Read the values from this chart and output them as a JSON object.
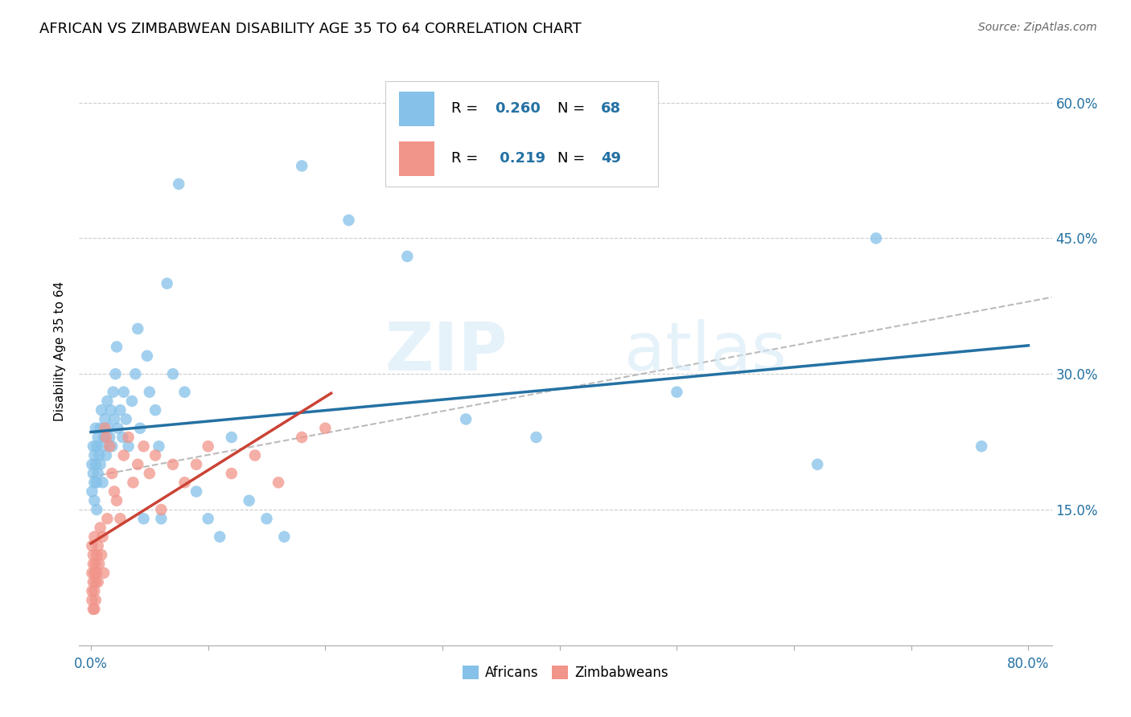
{
  "title": "AFRICAN VS ZIMBABWEAN DISABILITY AGE 35 TO 64 CORRELATION CHART",
  "source": "Source: ZipAtlas.com",
  "ylabel": "Disability Age 35 to 64",
  "ytick_labels": [
    "15.0%",
    "30.0%",
    "45.0%",
    "60.0%"
  ],
  "ytick_values": [
    0.15,
    0.3,
    0.45,
    0.6
  ],
  "xlim": [
    -0.01,
    0.82
  ],
  "ylim": [
    0.0,
    0.65
  ],
  "legend_africans": "Africans",
  "legend_zimbabweans": "Zimbabweans",
  "R_african": 0.26,
  "N_african": 68,
  "R_zimbabwean": 0.219,
  "N_zimbabwean": 49,
  "african_color": "#85C1E9",
  "zimbabwean_color": "#F1948A",
  "trend_african_color": "#2471A3",
  "trend_zimbabwean_color": "#CB4335",
  "trend_combined_color": "#BBBBBB",
  "watermark_zip": "ZIP",
  "watermark_atlas": "atlas",
  "african_x": [
    0.001,
    0.001,
    0.002,
    0.002,
    0.003,
    0.003,
    0.003,
    0.004,
    0.004,
    0.005,
    0.005,
    0.005,
    0.006,
    0.006,
    0.007,
    0.008,
    0.008,
    0.009,
    0.01,
    0.01,
    0.011,
    0.012,
    0.013,
    0.014,
    0.015,
    0.016,
    0.017,
    0.018,
    0.019,
    0.02,
    0.021,
    0.022,
    0.023,
    0.025,
    0.027,
    0.028,
    0.03,
    0.032,
    0.035,
    0.038,
    0.04,
    0.042,
    0.045,
    0.048,
    0.05,
    0.055,
    0.058,
    0.06,
    0.065,
    0.07,
    0.075,
    0.08,
    0.09,
    0.1,
    0.11,
    0.12,
    0.135,
    0.15,
    0.165,
    0.18,
    0.22,
    0.27,
    0.32,
    0.38,
    0.5,
    0.62,
    0.67,
    0.76
  ],
  "african_y": [
    0.2,
    0.17,
    0.19,
    0.22,
    0.18,
    0.21,
    0.16,
    0.2,
    0.24,
    0.18,
    0.22,
    0.15,
    0.23,
    0.19,
    0.21,
    0.24,
    0.2,
    0.26,
    0.22,
    0.18,
    0.23,
    0.25,
    0.21,
    0.27,
    0.24,
    0.23,
    0.26,
    0.22,
    0.28,
    0.25,
    0.3,
    0.33,
    0.24,
    0.26,
    0.23,
    0.28,
    0.25,
    0.22,
    0.27,
    0.3,
    0.35,
    0.24,
    0.14,
    0.32,
    0.28,
    0.26,
    0.22,
    0.14,
    0.4,
    0.3,
    0.51,
    0.28,
    0.17,
    0.14,
    0.12,
    0.23,
    0.16,
    0.14,
    0.12,
    0.53,
    0.47,
    0.43,
    0.25,
    0.23,
    0.28,
    0.2,
    0.45,
    0.22
  ],
  "zimbabwean_x": [
    0.001,
    0.001,
    0.001,
    0.001,
    0.002,
    0.002,
    0.002,
    0.002,
    0.003,
    0.003,
    0.003,
    0.003,
    0.004,
    0.004,
    0.004,
    0.005,
    0.005,
    0.006,
    0.006,
    0.007,
    0.008,
    0.009,
    0.01,
    0.011,
    0.012,
    0.013,
    0.014,
    0.016,
    0.018,
    0.02,
    0.022,
    0.025,
    0.028,
    0.032,
    0.036,
    0.04,
    0.045,
    0.05,
    0.055,
    0.06,
    0.07,
    0.08,
    0.09,
    0.1,
    0.12,
    0.14,
    0.16,
    0.18,
    0.2
  ],
  "zimbabwean_y": [
    0.08,
    0.06,
    0.11,
    0.05,
    0.07,
    0.1,
    0.04,
    0.09,
    0.08,
    0.06,
    0.12,
    0.04,
    0.07,
    0.09,
    0.05,
    0.1,
    0.08,
    0.07,
    0.11,
    0.09,
    0.13,
    0.1,
    0.12,
    0.08,
    0.24,
    0.23,
    0.14,
    0.22,
    0.19,
    0.17,
    0.16,
    0.14,
    0.21,
    0.23,
    0.18,
    0.2,
    0.22,
    0.19,
    0.21,
    0.15,
    0.2,
    0.18,
    0.2,
    0.22,
    0.19,
    0.21,
    0.18,
    0.23,
    0.24
  ],
  "xtick_minor_positions": [
    0.1,
    0.2,
    0.3,
    0.4,
    0.5,
    0.6,
    0.7
  ]
}
